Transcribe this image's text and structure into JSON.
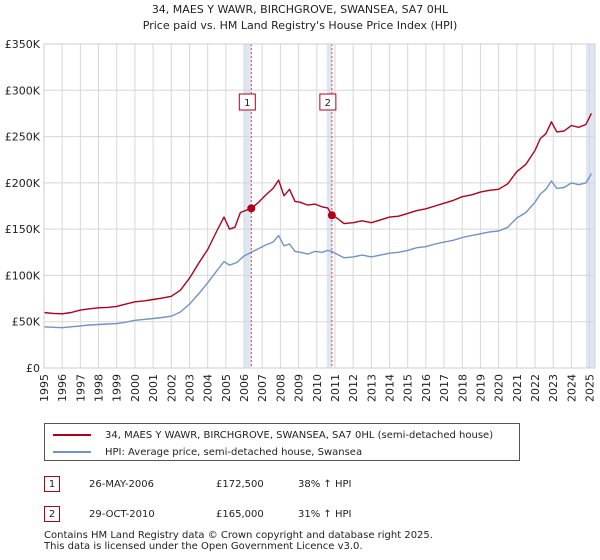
{
  "chart_data": {
    "type": "line",
    "title": "34, MAES Y WAWR, BIRCHGROVE, SWANSEA, SA7 0HL",
    "subtitle": "Price paid vs. HM Land Registry's House Price Index (HPI)",
    "xlabel": "",
    "ylabel": "",
    "xlim": [
      1995,
      2025.3
    ],
    "ylim": [
      0,
      350000
    ],
    "grid": true,
    "x_ticks": [
      "1995",
      "1996",
      "1997",
      "1998",
      "1999",
      "2000",
      "2001",
      "2002",
      "2003",
      "2004",
      "2005",
      "2006",
      "2007",
      "2008",
      "2009",
      "2010",
      "2011",
      "2012",
      "2013",
      "2014",
      "2015",
      "2016",
      "2017",
      "2018",
      "2019",
      "2020",
      "2021",
      "2022",
      "2023",
      "2024",
      "2025"
    ],
    "y_ticks": [
      {
        "value": 0,
        "label": "£0"
      },
      {
        "value": 50000,
        "label": "£50K"
      },
      {
        "value": 100000,
        "label": "£100K"
      },
      {
        "value": 150000,
        "label": "£150K"
      },
      {
        "value": 200000,
        "label": "£200K"
      },
      {
        "value": 250000,
        "label": "£250K"
      },
      {
        "value": 300000,
        "label": "£300K"
      },
      {
        "value": 350000,
        "label": "£350K"
      }
    ],
    "series": [
      {
        "name": "34, MAES Y WAWR, BIRCHGROVE, SWANSEA, SA7 0HL (semi-detached house)",
        "color": "#b0001a",
        "points": [
          [
            1995.0,
            60000
          ],
          [
            1995.5,
            59000
          ],
          [
            1996.0,
            58500
          ],
          [
            1996.5,
            60000
          ],
          [
            1997.0,
            62500
          ],
          [
            1997.5,
            64000
          ],
          [
            1998.0,
            65000
          ],
          [
            1998.5,
            65500
          ],
          [
            1999.0,
            66500
          ],
          [
            1999.5,
            69000
          ],
          [
            2000.0,
            71500
          ],
          [
            2000.5,
            72500
          ],
          [
            2001.0,
            74000
          ],
          [
            2001.5,
            75500
          ],
          [
            2002.0,
            77500
          ],
          [
            2002.5,
            84000
          ],
          [
            2003.0,
            97000
          ],
          [
            2003.5,
            113000
          ],
          [
            2004.0,
            128000
          ],
          [
            2004.5,
            148000
          ],
          [
            2004.9,
            163000
          ],
          [
            2005.2,
            150000
          ],
          [
            2005.5,
            152000
          ],
          [
            2005.8,
            168000
          ],
          [
            2006.4,
            172500
          ],
          [
            2006.8,
            179000
          ],
          [
            2007.2,
            187000
          ],
          [
            2007.6,
            194000
          ],
          [
            2007.9,
            203000
          ],
          [
            2008.2,
            186000
          ],
          [
            2008.5,
            193000
          ],
          [
            2008.8,
            180000
          ],
          [
            2009.1,
            179000
          ],
          [
            2009.5,
            176000
          ],
          [
            2009.9,
            177000
          ],
          [
            2010.3,
            174000
          ],
          [
            2010.6,
            173000
          ],
          [
            2010.83,
            165000
          ],
          [
            2011.1,
            162000
          ],
          [
            2011.5,
            156000
          ],
          [
            2012.0,
            157000
          ],
          [
            2012.5,
            159000
          ],
          [
            2013.0,
            157000
          ],
          [
            2013.5,
            160000
          ],
          [
            2014.0,
            163000
          ],
          [
            2014.5,
            164000
          ],
          [
            2015.0,
            167000
          ],
          [
            2015.5,
            170000
          ],
          [
            2016.0,
            172000
          ],
          [
            2016.5,
            175000
          ],
          [
            2017.0,
            178000
          ],
          [
            2017.5,
            181000
          ],
          [
            2018.0,
            185000
          ],
          [
            2018.5,
            187000
          ],
          [
            2019.0,
            190000
          ],
          [
            2019.5,
            192000
          ],
          [
            2020.0,
            193000
          ],
          [
            2020.5,
            199000
          ],
          [
            2021.0,
            212000
          ],
          [
            2021.5,
            220000
          ],
          [
            2022.0,
            235000
          ],
          [
            2022.3,
            248000
          ],
          [
            2022.6,
            253000
          ],
          [
            2022.9,
            266000
          ],
          [
            2023.2,
            255000
          ],
          [
            2023.6,
            256000
          ],
          [
            2024.0,
            262000
          ],
          [
            2024.4,
            260000
          ],
          [
            2024.8,
            263000
          ],
          [
            2025.1,
            275000
          ]
        ]
      },
      {
        "name": "HPI: Average price, semi-detached house, Swansea",
        "color": "#6f94c8",
        "points": [
          [
            1995.0,
            44500
          ],
          [
            1995.5,
            44000
          ],
          [
            1996.0,
            43500
          ],
          [
            1996.5,
            44500
          ],
          [
            1997.0,
            45500
          ],
          [
            1997.5,
            46500
          ],
          [
            1998.0,
            47000
          ],
          [
            1998.5,
            47500
          ],
          [
            1999.0,
            48000
          ],
          [
            1999.5,
            49500
          ],
          [
            2000.0,
            51500
          ],
          [
            2000.5,
            52500
          ],
          [
            2001.0,
            53500
          ],
          [
            2001.5,
            54500
          ],
          [
            2002.0,
            56000
          ],
          [
            2002.5,
            60500
          ],
          [
            2003.0,
            69000
          ],
          [
            2003.5,
            80000
          ],
          [
            2004.0,
            92000
          ],
          [
            2004.5,
            105000
          ],
          [
            2004.9,
            115000
          ],
          [
            2005.2,
            111000
          ],
          [
            2005.6,
            114000
          ],
          [
            2006.0,
            121000
          ],
          [
            2006.4,
            125000
          ],
          [
            2006.8,
            129000
          ],
          [
            2007.2,
            133000
          ],
          [
            2007.6,
            136000
          ],
          [
            2007.9,
            143000
          ],
          [
            2008.2,
            132000
          ],
          [
            2008.5,
            134000
          ],
          [
            2008.8,
            126000
          ],
          [
            2009.1,
            125000
          ],
          [
            2009.5,
            123000
          ],
          [
            2009.9,
            126000
          ],
          [
            2010.3,
            125000
          ],
          [
            2010.6,
            127000
          ],
          [
            2010.83,
            126000
          ],
          [
            2011.1,
            123000
          ],
          [
            2011.5,
            119000
          ],
          [
            2012.0,
            120000
          ],
          [
            2012.5,
            122000
          ],
          [
            2013.0,
            120000
          ],
          [
            2013.5,
            122000
          ],
          [
            2014.0,
            124000
          ],
          [
            2014.5,
            125000
          ],
          [
            2015.0,
            127000
          ],
          [
            2015.5,
            130000
          ],
          [
            2016.0,
            131000
          ],
          [
            2016.5,
            134000
          ],
          [
            2017.0,
            136000
          ],
          [
            2017.5,
            138000
          ],
          [
            2018.0,
            141000
          ],
          [
            2018.5,
            143000
          ],
          [
            2019.0,
            145000
          ],
          [
            2019.5,
            147000
          ],
          [
            2020.0,
            148000
          ],
          [
            2020.5,
            152000
          ],
          [
            2021.0,
            162000
          ],
          [
            2021.5,
            168000
          ],
          [
            2022.0,
            179000
          ],
          [
            2022.3,
            188000
          ],
          [
            2022.6,
            193000
          ],
          [
            2022.9,
            202000
          ],
          [
            2023.2,
            194000
          ],
          [
            2023.6,
            195000
          ],
          [
            2024.0,
            200000
          ],
          [
            2024.4,
            198000
          ],
          [
            2024.8,
            200000
          ],
          [
            2025.1,
            210000
          ]
        ]
      }
    ],
    "sales": [
      {
        "id": "1",
        "date": "26-MAY-2006",
        "x": 2006.4,
        "price": 172500,
        "price_label": "£172,500",
        "hpi": "38% ↑ HPI"
      },
      {
        "id": "2",
        "date": "29-OCT-2010",
        "x": 2010.83,
        "price": 165000,
        "price_label": "£165,000",
        "hpi": "31% ↑ HPI"
      }
    ],
    "shaded_bands": [
      [
        2006.0,
        2006.4
      ],
      [
        2010.55,
        2010.83
      ],
      [
        2024.8,
        2025.3
      ]
    ]
  },
  "legend": {
    "property": "34, MAES Y WAWR, BIRCHGROVE, SWANSEA, SA7 0HL (semi-detached house)",
    "hpi": "HPI: Average price, semi-detached house, Swansea"
  },
  "colors": {
    "property": "#b0001a",
    "hpi": "#6f94c8",
    "band": "#dde6f3",
    "grid": "#d7d7d7"
  },
  "footer": {
    "line1": "Contains HM Land Registry data © Crown copyright and database right 2025.",
    "line2": "This data is licensed under the Open Government Licence v3.0."
  }
}
